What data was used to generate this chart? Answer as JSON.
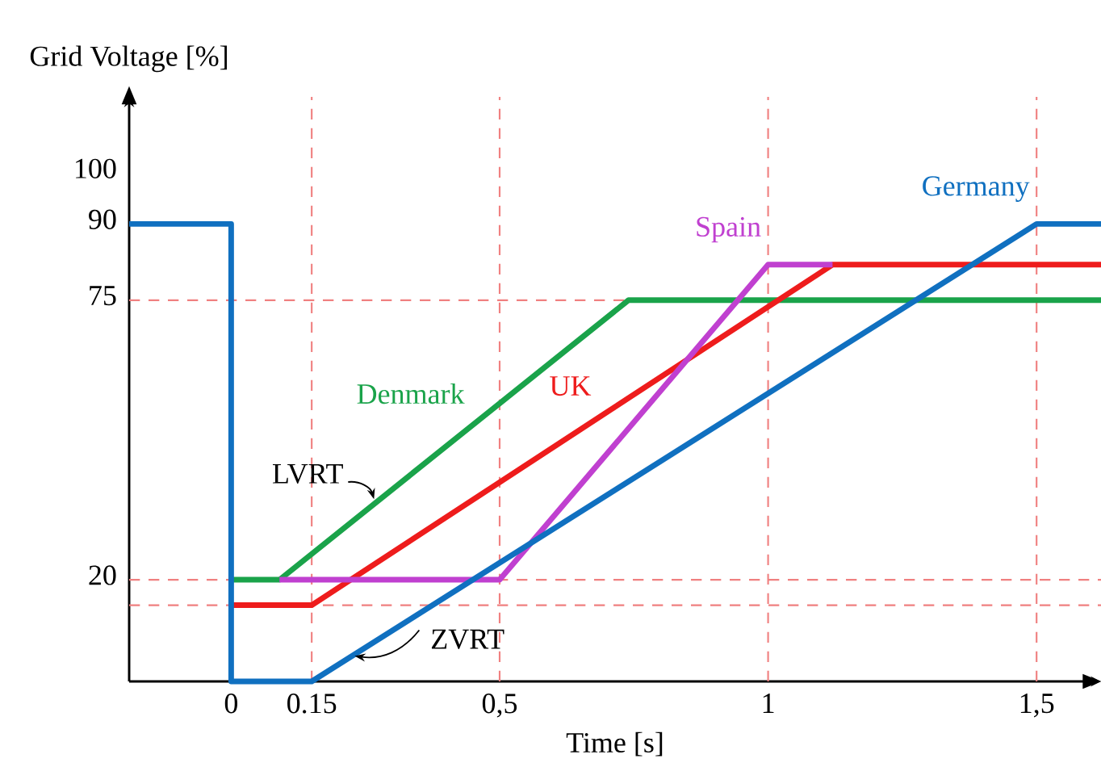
{
  "chart_data": {
    "type": "line",
    "xlabel": "Time [s]",
    "ylabel": "Grid Voltage [%]",
    "xlim": [
      -0.19,
      1.62
    ],
    "ylim": [
      0,
      115
    ],
    "xticks": [
      0,
      {
        "value": 0.15,
        "label": "0.15"
      },
      {
        "value": 0.5,
        "label": "0,5"
      },
      1,
      {
        "value": 1.5,
        "label": "1,5"
      }
    ],
    "yticks": [
      20,
      75,
      90,
      100
    ],
    "grid": false,
    "legend": false,
    "marker": "none",
    "line_style": "solid",
    "series": [
      {
        "name": "Denmark",
        "color": "#1aa34a",
        "x": [
          0,
          0.09,
          0.74,
          1.62
        ],
        "values": [
          20,
          20,
          75,
          75
        ]
      },
      {
        "name": "UK",
        "color": "#ee1c1c",
        "x": [
          0,
          0.15,
          1.12,
          1.62
        ],
        "values": [
          15,
          15,
          82,
          82
        ]
      },
      {
        "name": "Spain",
        "color": "#c040d0",
        "x": [
          0.09,
          0.5,
          1.0,
          1.12
        ],
        "values": [
          20,
          20,
          82,
          82
        ]
      },
      {
        "name": "Germany",
        "color": "#1070c0",
        "x": [
          -0.19,
          0,
          0,
          0.15,
          1.5,
          1.62
        ],
        "values": [
          90,
          90,
          0,
          0,
          90,
          90
        ]
      }
    ],
    "ref_lines": [
      {
        "axis": "y",
        "value": 75,
        "color": "#f08080",
        "line_style": "dashed"
      },
      {
        "axis": "y",
        "value": 20,
        "color": "#f08080",
        "line_style": "dashed"
      },
      {
        "axis": "y",
        "value": 15,
        "color": "#f08080",
        "line_style": "dashed"
      },
      {
        "axis": "x",
        "value": 0.15,
        "color": "#f08080",
        "line_style": "dashed"
      },
      {
        "axis": "x",
        "value": 0.5,
        "color": "#f08080",
        "line_style": "dashed"
      },
      {
        "axis": "x",
        "value": 1,
        "color": "#f08080",
        "line_style": "dashed"
      },
      {
        "axis": "x",
        "value": 1.5,
        "color": "#f08080",
        "line_style": "dashed"
      }
    ],
    "annotations": [
      {
        "text": "LVRT",
        "x": 0.27,
        "y": 35
      },
      {
        "text": "ZVRT",
        "x": 0.23,
        "y": 5
      }
    ]
  }
}
